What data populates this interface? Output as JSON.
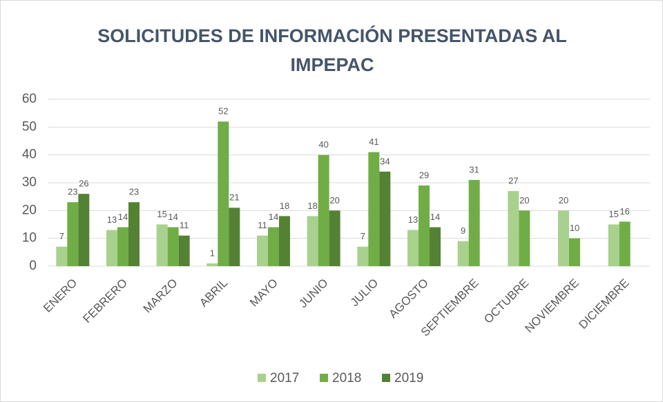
{
  "chart_data": {
    "type": "bar",
    "title": "SOLICITUDES DE INFORMACIÓN PRESENTADAS AL IMPEPAC",
    "categories": [
      "ENERO",
      "FEBRERO",
      "MARZO",
      "ABRIL",
      "MAYO",
      "JUNIO",
      "JULIO",
      "AGOSTO",
      "SEPTIEMBRE",
      "OCTUBRE",
      "NOVIEMBRE",
      "DICIEMBRE"
    ],
    "series": [
      {
        "name": "2017",
        "color": "#a9d18e",
        "values": [
          7,
          13,
          15,
          1,
          11,
          18,
          7,
          13,
          9,
          27,
          20,
          15
        ]
      },
      {
        "name": "2018",
        "color": "#70ad47",
        "values": [
          23,
          14,
          14,
          52,
          14,
          40,
          41,
          29,
          31,
          20,
          10,
          16
        ]
      },
      {
        "name": "2019",
        "color": "#548235",
        "values": [
          26,
          23,
          11,
          21,
          18,
          20,
          34,
          14,
          null,
          null,
          null,
          null
        ]
      }
    ],
    "ylim": [
      0,
      60
    ],
    "yticks": [
      0,
      10,
      20,
      30,
      40,
      50,
      60
    ],
    "grid": true,
    "legend": "bottom"
  }
}
